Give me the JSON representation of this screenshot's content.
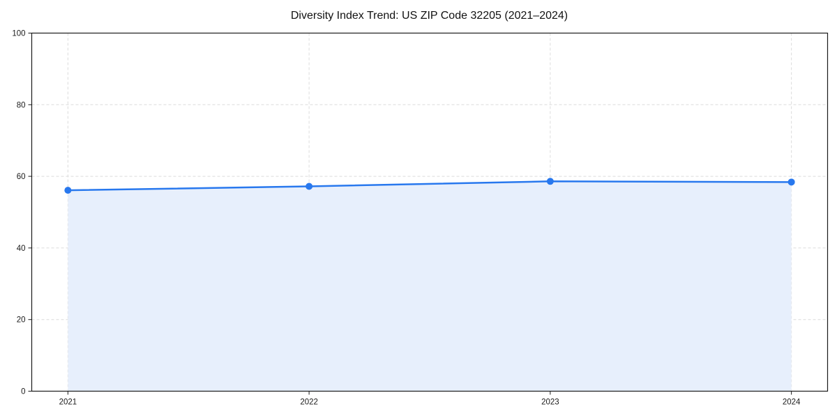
{
  "chart_data": {
    "type": "line",
    "title": "Diversity Index Trend: US ZIP Code 32205 (2021–2024)",
    "x": [
      2021,
      2022,
      2023,
      2024
    ],
    "values": [
      56.1,
      57.2,
      58.6,
      58.4
    ],
    "categories": [
      "2021",
      "2022",
      "2023",
      "2024"
    ],
    "xlabel": "",
    "ylabel": "",
    "xlim": [
      2020.85,
      2024.15
    ],
    "ylim": [
      0,
      100
    ],
    "xticks": [
      2021,
      2022,
      2023,
      2024
    ],
    "xtick_labels": [
      "2021",
      "2022",
      "2023",
      "2024"
    ],
    "yticks": [
      0,
      20,
      40,
      60,
      80,
      100
    ],
    "ytick_labels": [
      "0",
      "20",
      "40",
      "60",
      "80",
      "100"
    ],
    "grid": true,
    "grid_style": "dashed",
    "legend_position": "none",
    "area_fill": true,
    "marker": "circle",
    "colors": {
      "line": "#2878ee",
      "area": "#e7effc",
      "grid": "#dcdcdc",
      "axis": "#1a1a1a",
      "text": "#1a1a1a",
      "background": "#ffffff"
    }
  }
}
